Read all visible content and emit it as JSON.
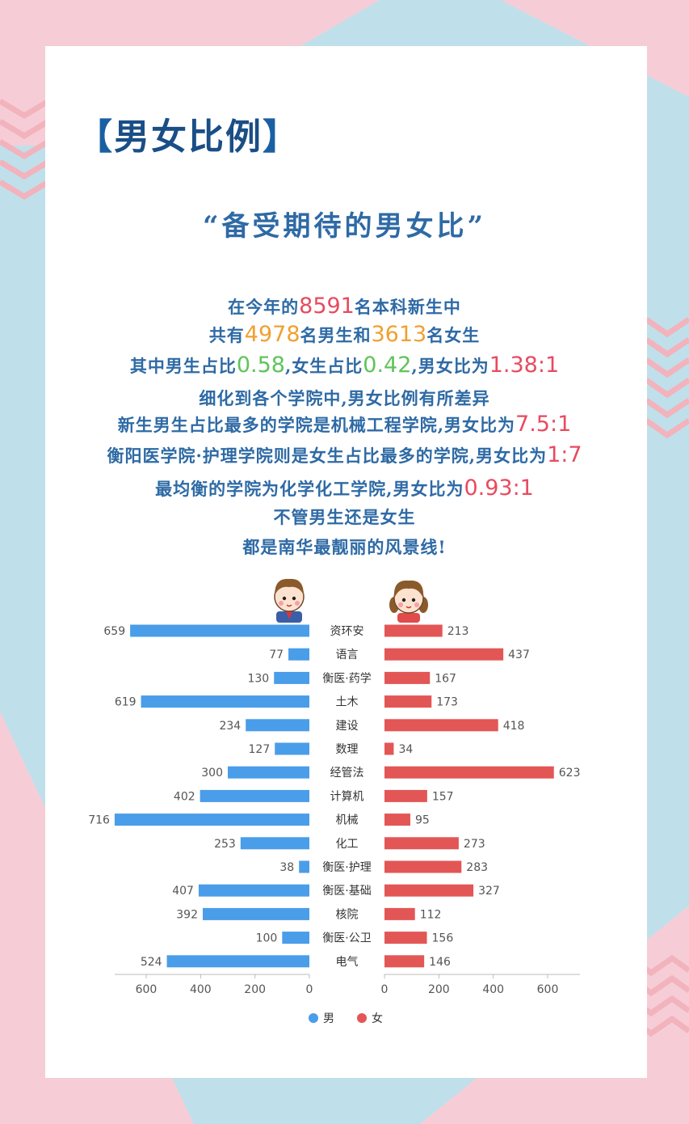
{
  "heading": {
    "open": "【",
    "text": "男女比例",
    "close": "】"
  },
  "subtitle": "“备受期待的男女比”",
  "intro": {
    "l1a": "在今年的",
    "l1b": "8591",
    "l1c": "名本科新生中",
    "l2a": "共有",
    "l2b": "4978",
    "l2c": "名男生和",
    "l2d": "3613",
    "l2e": "名女生",
    "l3a": "其中男生占比",
    "l3b": "0.58",
    "l3c": ",女生占比",
    "l3d": "0.42",
    "l3e": ",男女比为",
    "l3f": "1.38:1",
    "l4": "细化到各个学院中,男女比例有所差异",
    "l5a": "新生男生占比最多的学院是机械工程学院,男女比为",
    "l5b": "7.5:1",
    "l6a": "衡阳医学院·护理学院则是女生占比最多的学院,男女比为",
    "l6b": "1:7",
    "l7a": "最均衡的学院为化学化工学院,男女比为",
    "l7b": "0.93:1",
    "l8": "不管男生还是女生",
    "l9": "都是南华最靓丽的风景线!"
  },
  "chart_data": {
    "type": "bar",
    "orientation": "horizontal-butterfly",
    "categories": [
      "资环安",
      "语言",
      "衡医·药学",
      "土木",
      "建设",
      "数理",
      "经管法",
      "计算机",
      "机械",
      "化工",
      "衡医·护理",
      "衡医·基础",
      "核院",
      "衡医·公卫",
      "电气"
    ],
    "series": [
      {
        "name": "男",
        "color": "#4a9de8",
        "values": [
          659,
          77,
          130,
          619,
          234,
          127,
          300,
          402,
          716,
          253,
          38,
          407,
          392,
          100,
          524
        ]
      },
      {
        "name": "女",
        "color": "#e35656",
        "values": [
          213,
          437,
          167,
          173,
          418,
          34,
          623,
          157,
          95,
          273,
          283,
          327,
          112,
          156,
          146
        ]
      }
    ],
    "left_ticks": [
      "600",
      "400",
      "200",
      "0"
    ],
    "right_ticks": [
      "0",
      "200",
      "400",
      "600"
    ],
    "xlim": [
      0,
      720
    ],
    "legend_position": "bottom"
  }
}
